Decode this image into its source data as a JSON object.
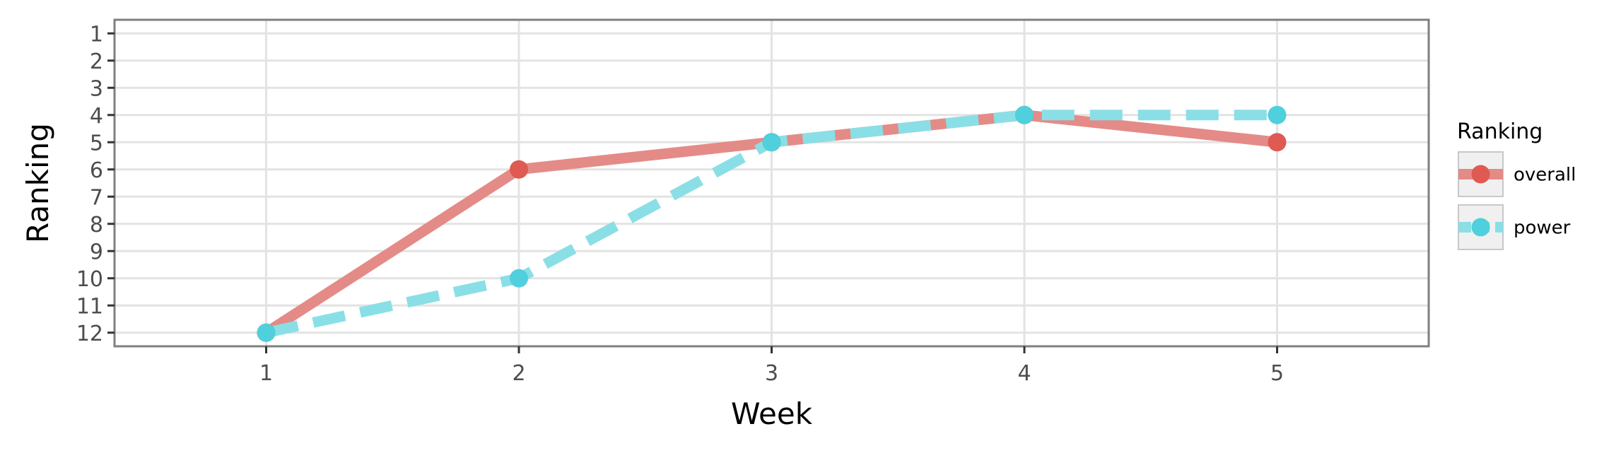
{
  "chart_data": {
    "type": "line",
    "xlabel": "Week",
    "ylabel": "Ranking",
    "x": [
      1,
      2,
      3,
      4,
      5
    ],
    "x_ticks": [
      "1",
      "2",
      "3",
      "4",
      "5"
    ],
    "xlim": [
      0.4,
      5.6
    ],
    "ylim": [
      12.5,
      0.5
    ],
    "y_reversed": true,
    "y_ticks": [
      "1",
      "2",
      "3",
      "4",
      "5",
      "6",
      "7",
      "8",
      "9",
      "10",
      "11",
      "12"
    ],
    "grid": true,
    "legend": {
      "title": "Ranking",
      "placement": "right"
    },
    "series": [
      {
        "name": "overall",
        "values": [
          12,
          6,
          5,
          4,
          5
        ],
        "line_color": "#e48b87",
        "point_color": "#de5a52",
        "dash": "solid"
      },
      {
        "name": "power",
        "values": [
          12,
          10,
          5,
          4,
          4
        ],
        "line_color": "#8adfe6",
        "point_color": "#4fd0dc",
        "dash": "dashed"
      }
    ]
  }
}
